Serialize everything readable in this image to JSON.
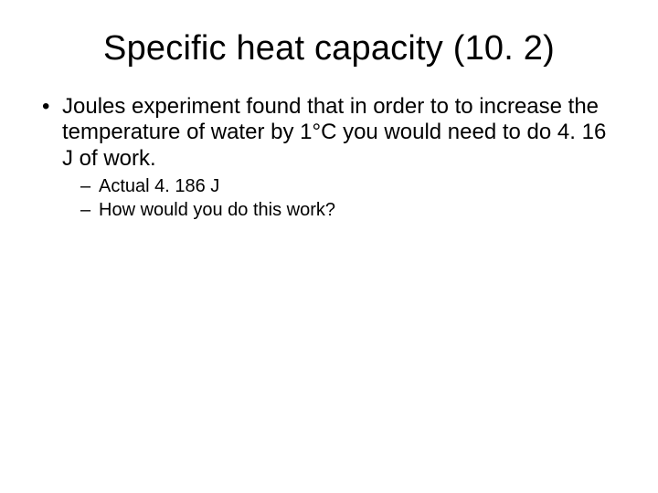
{
  "slide": {
    "title": "Specific heat capacity (10. 2)",
    "title_fontsize": 38,
    "title_color": "#000000",
    "background_color": "#ffffff",
    "bullets": [
      {
        "text": "Joules experiment found that in order to to increase the temperature of water by 1°C you would need to do 4. 16 J of work.",
        "fontsize": 24,
        "color": "#000000",
        "children": [
          {
            "text": "Actual 4. 186 J",
            "fontsize": 20,
            "color": "#000000"
          },
          {
            "text": "How would you do this work?",
            "fontsize": 20,
            "color": "#000000"
          }
        ]
      }
    ]
  }
}
